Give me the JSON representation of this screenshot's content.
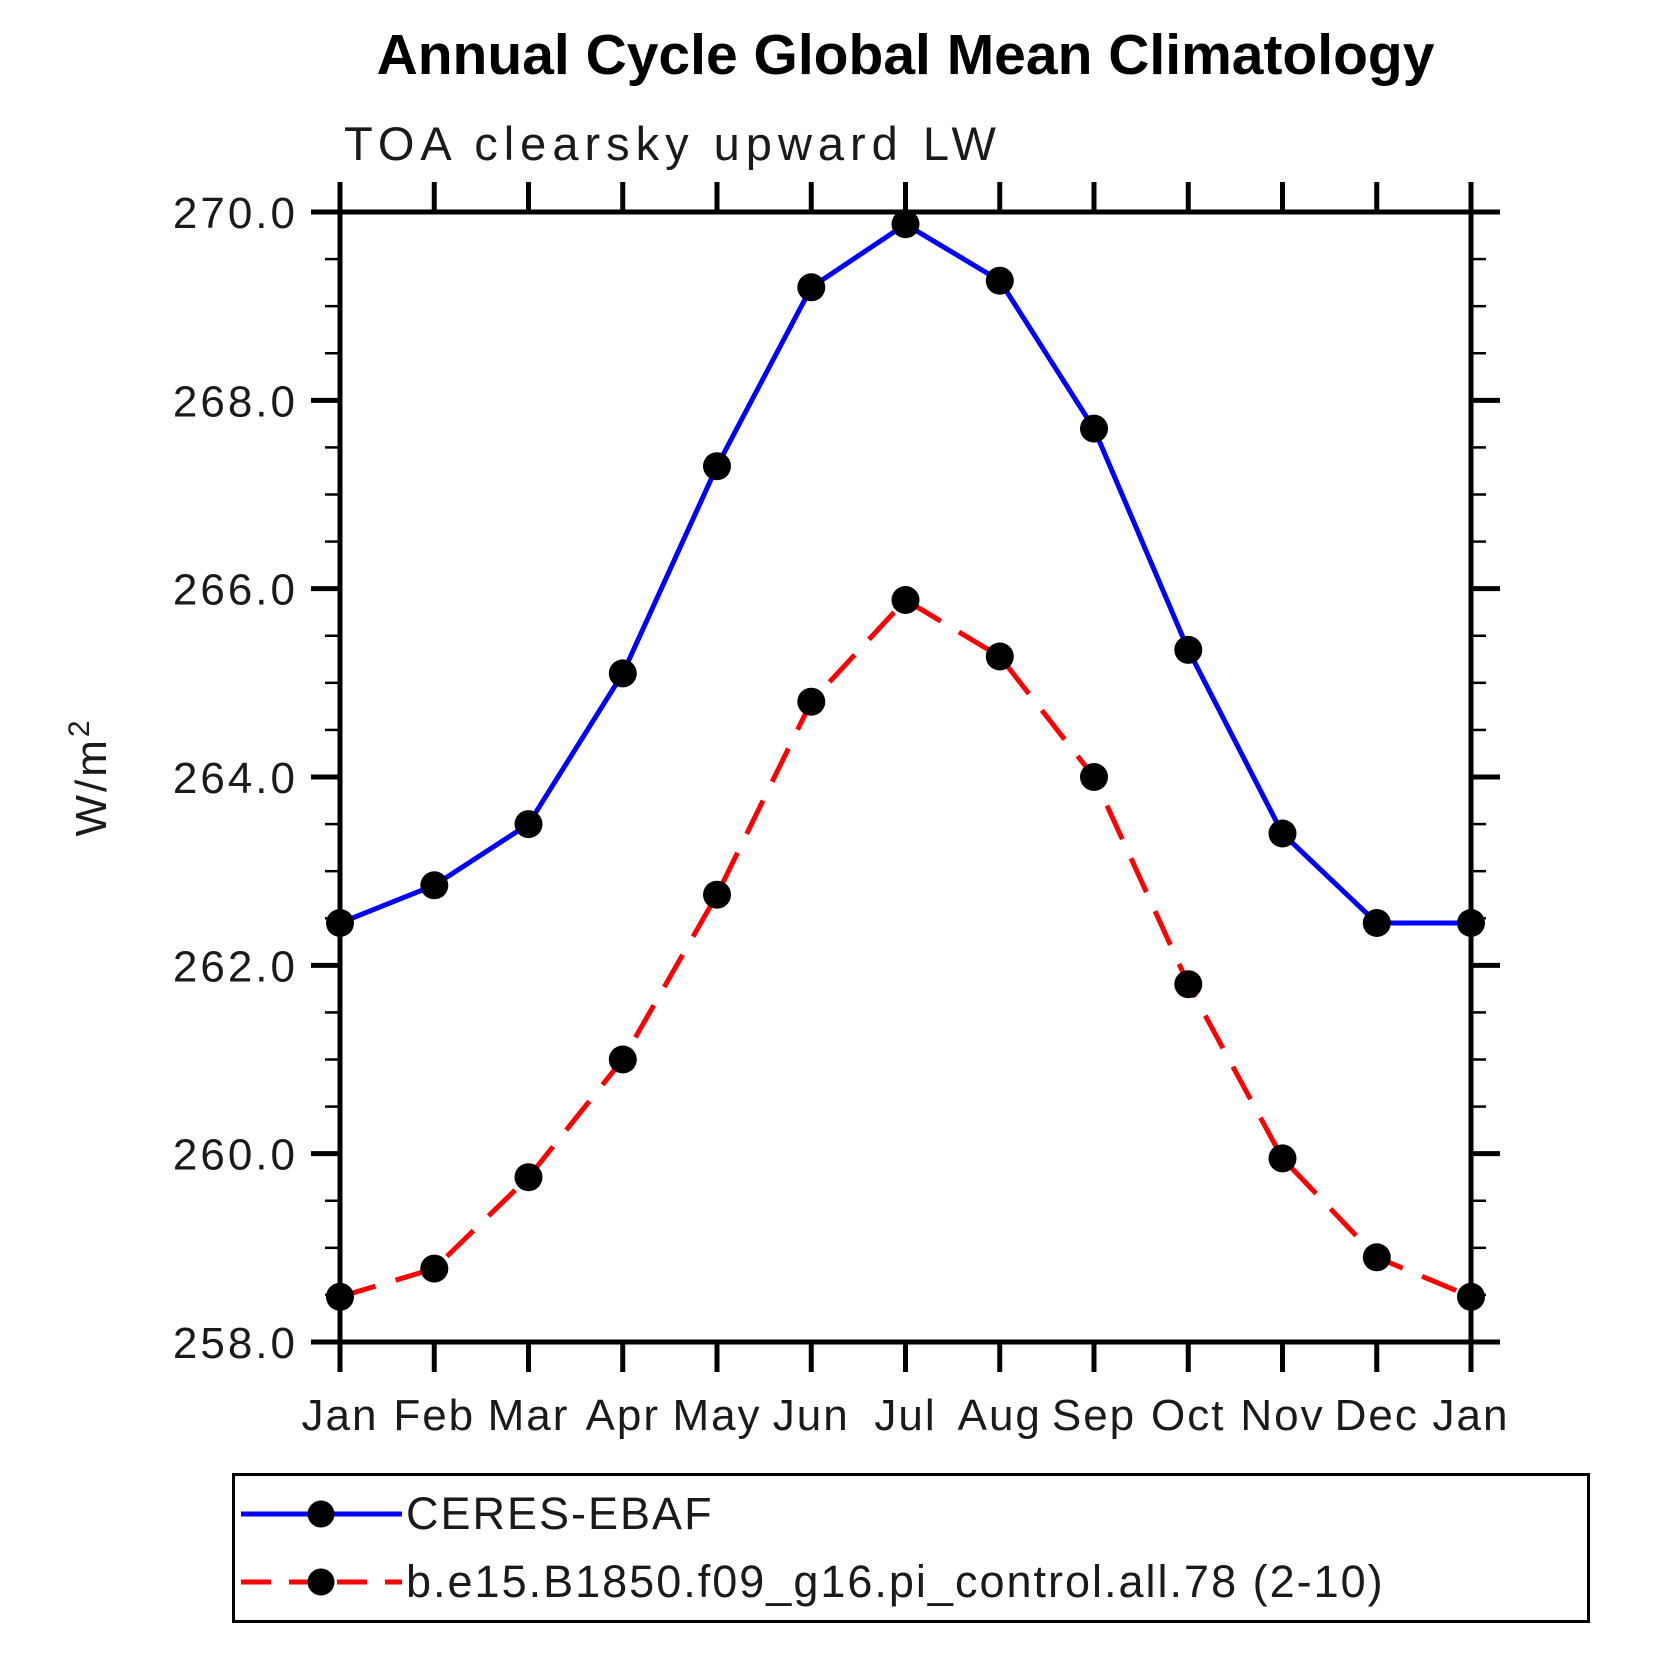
{
  "header": {
    "title": "Annual Cycle Global Mean Climatology",
    "subtitle": "TOA clearsky upward LW"
  },
  "y_axis": {
    "title_base": "W/m",
    "title_exponent": "2"
  },
  "chart_data": {
    "type": "line",
    "categories": [
      "Jan",
      "Feb",
      "Mar",
      "Apr",
      "May",
      "Jun",
      "Jul",
      "Aug",
      "Sep",
      "Oct",
      "Nov",
      "Dec",
      "Jan"
    ],
    "series": [
      {
        "name": "CERES-EBAF",
        "color": "#0000ff",
        "line_style": "solid",
        "marker": "filled-circle",
        "marker_color": "#000000",
        "values": [
          262.45,
          262.85,
          263.5,
          265.1,
          267.3,
          269.2,
          269.87,
          269.27,
          267.7,
          265.35,
          263.4,
          262.45,
          262.45
        ]
      },
      {
        "name": "b.e15.B1850.f09_g16.pi_control.all.78 (2-10)",
        "color": "#ff0000",
        "line_style": "dashed",
        "marker": "filled-circle",
        "marker_color": "#000000",
        "values": [
          258.48,
          258.78,
          259.75,
          261.0,
          262.75,
          264.8,
          265.88,
          265.28,
          264.0,
          261.8,
          259.95,
          258.9,
          258.48
        ]
      }
    ],
    "ylabel": "W/m²",
    "ylim": [
      258.0,
      270.0
    ],
    "y_major_step": 2.0,
    "y_minor_step": 0.5,
    "y_tick_labels": [
      "270.0",
      "268.0",
      "266.0",
      "264.0",
      "262.0",
      "260.0",
      "258.0"
    ],
    "grid": false,
    "legend_position": "below-plot"
  },
  "colors": {
    "axis": "#000000",
    "background": "#ffffff"
  }
}
